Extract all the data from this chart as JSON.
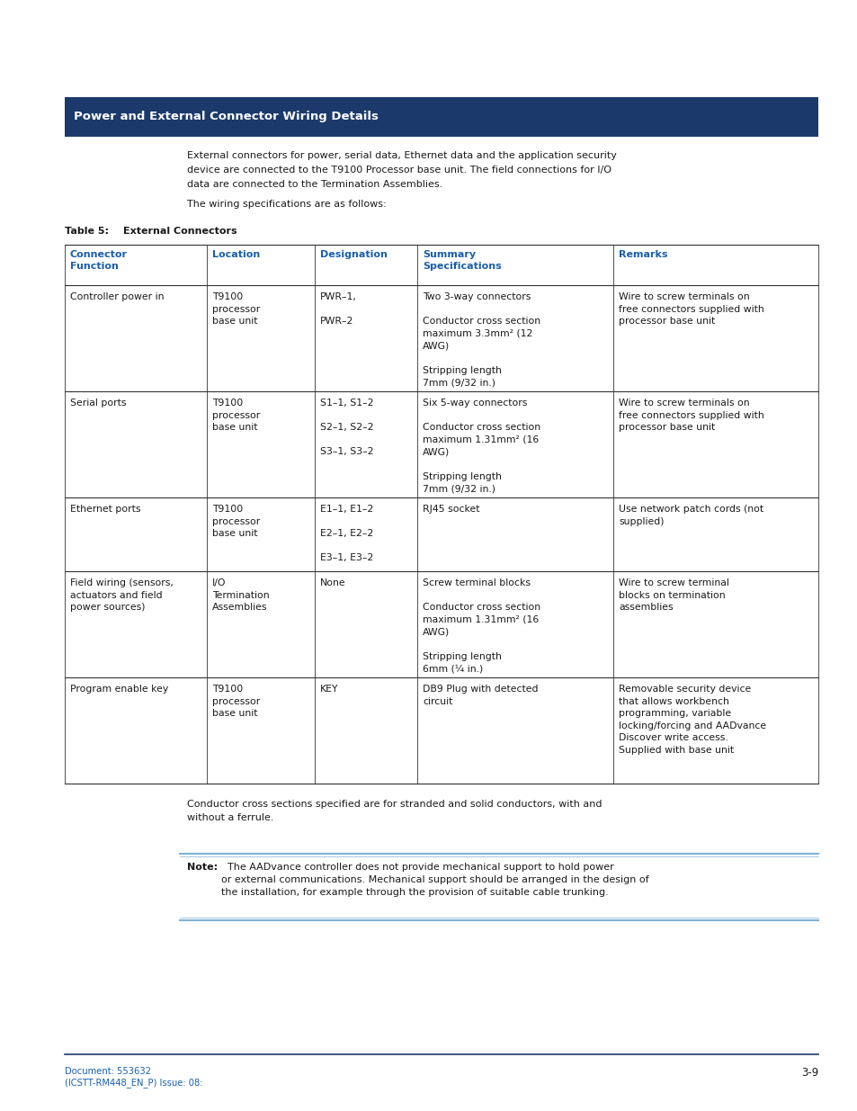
{
  "page_bg": "#ffffff",
  "header_bg": "#1b3a6b",
  "header_text": "Power and External Connector Wiring Details",
  "header_text_color": "#ffffff",
  "intro_line1": "External connectors for power, serial data, Ethernet data and the application security",
  "intro_line2": "device are connected to the T9100 Processor base unit. The field connections for I/O",
  "intro_line3": "data are connected to the Termination Assemblies.",
  "wiring_spec_text": "The wiring specifications are as follows:",
  "table_label": "Table 5:",
  "table_title": "External Connectors",
  "col_headers": [
    "Connector\nFunction",
    "Location",
    "Designation",
    "Summary\nSpecifications",
    "Remarks"
  ],
  "col_header_color": "#1b5faa",
  "table_line_color": "#333333",
  "rows": [
    {
      "col0": "Controller power in",
      "col1": "T9100\nprocessor\nbase unit",
      "col2": "PWR–1,\n\nPWR–2",
      "col3": "Two 3-way connectors\n\nConductor cross section\nmaximum 3.3mm² (12\nAWG)\n\nStripping length\n7mm (9/32 in.)",
      "col4": "Wire to screw terminals on\nfree connectors supplied with\nprocessor base unit"
    },
    {
      "col0": "Serial ports",
      "col1": "T9100\nprocessor\nbase unit",
      "col2": "S1–1, S1–2\n\nS2–1, S2–2\n\nS3–1, S3–2",
      "col3": "Six 5-way connectors\n\nConductor cross section\nmaximum 1.31mm² (16\nAWG)\n\nStripping length\n7mm (9/32 in.)",
      "col4": "Wire to screw terminals on\nfree connectors supplied with\nprocessor base unit"
    },
    {
      "col0": "Ethernet ports",
      "col1": "T9100\nprocessor\nbase unit",
      "col2": "E1–1, E1–2\n\nE2–1, E2–2\n\nE3–1, E3–2",
      "col3": "RJ45 socket",
      "col4": "Use network patch cords (not\nsupplied)"
    },
    {
      "col0": "Field wiring (sensors,\nactuators and field\npower sources)",
      "col1": "I/O\nTermination\nAssemblies",
      "col2": "None",
      "col3": "Screw terminal blocks\n\nConductor cross section\nmaximum 1.31mm² (16\nAWG)\n\nStripping length\n6mm (¼ in.)",
      "col4": "Wire to screw terminal\nblocks on termination\nassemblies"
    },
    {
      "col0": "Program enable key",
      "col1": "T9100\nprocessor\nbase unit",
      "col2": "KEY",
      "col3": "DB9 Plug with detected\ncircuit",
      "col4": "Removable security device\nthat allows workbench\nprogramming, variable\nlocking/forcing and AADvance\nDiscover write access.\nSupplied with base unit"
    }
  ],
  "footnote_line1": "Conductor cross sections specified are for stranded and solid conductors, with and",
  "footnote_line2": "without a ferrule.",
  "note_label": "Note:",
  "note_body": "  The AADvance controller does not provide mechanical support to hold power\nor external communications. Mechanical support should be arranged in the design of\nthe installation, for example through the provision of suitable cable trunking.",
  "note_line_color": "#7fb3d3",
  "footer_doc_line1": "Document: 553632",
  "footer_doc_line2": "(ICSTT-RM448_EN_P) Issue: 08:",
  "footer_text_color": "#1b5faa",
  "footer_page": "3-9",
  "footer_line_color": "#1b3a6b"
}
